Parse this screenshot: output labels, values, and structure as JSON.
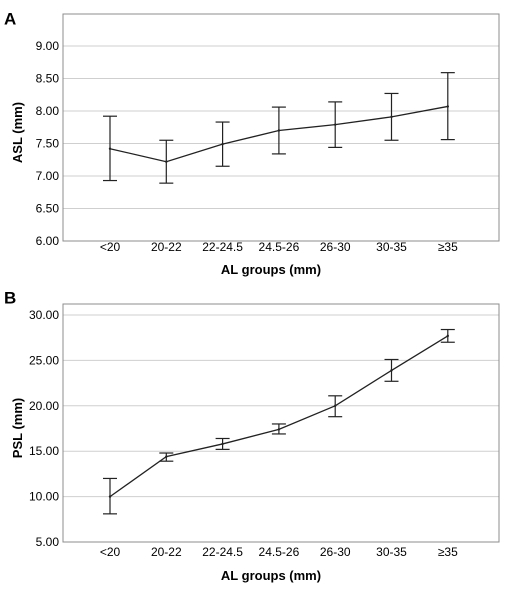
{
  "chart_data": [
    {
      "type": "line",
      "panel_label": "A",
      "xlabel": "AL groups (mm)",
      "ylabel": "ASL (mm)",
      "categories": [
        "<20",
        "20-22",
        "22-24.5",
        "24.5-26",
        "26-30",
        "30-35",
        "≥35"
      ],
      "values": [
        7.42,
        7.22,
        7.49,
        7.7,
        7.79,
        7.91,
        8.07
      ],
      "error_low": [
        6.93,
        6.89,
        7.15,
        7.34,
        7.44,
        7.55,
        7.56
      ],
      "error_high": [
        7.92,
        7.55,
        7.83,
        8.06,
        8.14,
        8.27,
        8.59
      ],
      "ylim": [
        6.0,
        9.0
      ],
      "yticks": [
        "6.00",
        "6.50",
        "7.00",
        "7.50",
        "8.00",
        "8.50",
        "9.00"
      ],
      "grid": "horizontal",
      "legend": "none"
    },
    {
      "type": "line",
      "panel_label": "B",
      "xlabel": "AL groups (mm)",
      "ylabel": "PSL (mm)",
      "categories": [
        "<20",
        "20-22",
        "22-24.5",
        "24.5-26",
        "26-30",
        "30-35",
        "≥35"
      ],
      "values": [
        10.0,
        14.4,
        15.8,
        17.4,
        20.0,
        23.9,
        27.7
      ],
      "error_low": [
        8.1,
        13.9,
        15.2,
        16.9,
        18.8,
        22.7,
        27.0
      ],
      "error_high": [
        12.0,
        14.8,
        16.4,
        18.0,
        21.1,
        25.1,
        28.4
      ],
      "ylim": [
        5.0,
        30.0
      ],
      "yticks": [
        "5.00",
        "10.00",
        "15.00",
        "20.00",
        "25.00",
        "30.00"
      ],
      "grid": "horizontal",
      "legend": "none"
    }
  ],
  "colors": {
    "line": "#222222",
    "grid": "#cfcfcf",
    "frame": "#8c8c8c",
    "background": "#ffffff"
  }
}
